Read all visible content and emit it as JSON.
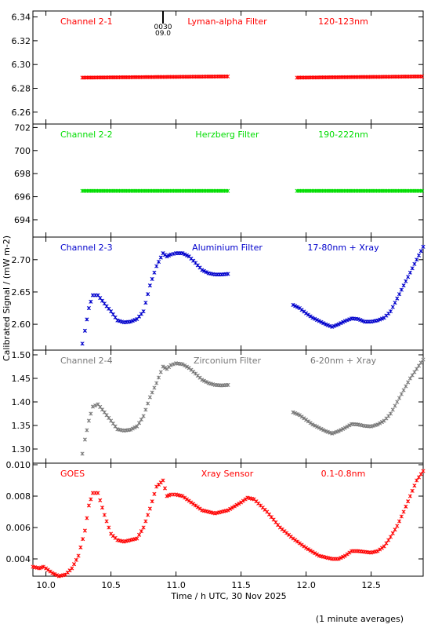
{
  "xaxis": {
    "label": "Time / h UTC, 30 Nov 2025",
    "xlim": [
      9.9,
      12.9
    ],
    "ticks": [
      "10.0",
      "10.5",
      "11.0",
      "11.5",
      "12.0",
      "12.5"
    ]
  },
  "ylabel": "Calibrated Signal / (mW m-2)",
  "footer": "(1 minute averages)",
  "marker": {
    "x": 10.9,
    "labels": [
      "0030",
      "09.0"
    ]
  },
  "chart_data": [
    {
      "type": "scatter",
      "channel": "Channel 2-1",
      "filter": "Lyman-alpha Filter",
      "band": "120-123nm",
      "color": "#ff0000",
      "ylim": [
        6.25,
        6.345
      ],
      "yticks": [
        "6.26",
        "6.28",
        "6.30",
        "6.32",
        "6.34"
      ],
      "segments": [
        {
          "x": [
            10.28,
            11.4
          ],
          "y": [
            6.289,
            6.29
          ]
        },
        {
          "x": [
            11.93,
            12.9
          ],
          "y": [
            6.289,
            6.29
          ]
        }
      ]
    },
    {
      "type": "scatter",
      "channel": "Channel 2-2",
      "filter": "Herzberg Filter",
      "band": "190-222nm",
      "color": "#00dd00",
      "ylim": [
        692.5,
        702.3
      ],
      "yticks": [
        "694",
        "696",
        "698",
        "700",
        "702"
      ],
      "segments": [
        {
          "x": [
            10.28,
            11.4
          ],
          "y": [
            696.5,
            696.5
          ]
        },
        {
          "x": [
            11.93,
            12.9
          ],
          "y": [
            696.5,
            696.5
          ]
        }
      ]
    },
    {
      "type": "scatter",
      "channel": "Channel 2-3",
      "filter": "Aluminium Filter",
      "band": "17-80nm + Xray",
      "color": "#0000cc",
      "ylim": [
        2.56,
        2.735
      ],
      "yticks": [
        "2.60",
        "2.65",
        "2.70"
      ],
      "series": [
        {
          "x": [
            10.28,
            10.3,
            10.33,
            10.36,
            10.4,
            10.45,
            10.5,
            10.55,
            10.6,
            10.65,
            10.7,
            10.75,
            10.8,
            10.85,
            10.9,
            10.93,
            10.96,
            11.0,
            11.05,
            11.1,
            11.15,
            11.2,
            11.25,
            11.3,
            11.35,
            11.4
          ],
          "y": [
            2.57,
            2.59,
            2.625,
            2.645,
            2.645,
            2.632,
            2.62,
            2.606,
            2.603,
            2.604,
            2.608,
            2.62,
            2.66,
            2.69,
            2.71,
            2.705,
            2.708,
            2.71,
            2.71,
            2.705,
            2.695,
            2.684,
            2.679,
            2.677,
            2.677,
            2.678
          ]
        },
        {
          "x": [
            11.9,
            11.95,
            12.0,
            12.05,
            12.1,
            12.15,
            12.2,
            12.25,
            12.3,
            12.35,
            12.4,
            12.45,
            12.5,
            12.55,
            12.6,
            12.65,
            12.7,
            12.75,
            12.8,
            12.85,
            12.9
          ],
          "y": [
            2.63,
            2.625,
            2.617,
            2.61,
            2.605,
            2.6,
            2.596,
            2.6,
            2.605,
            2.609,
            2.608,
            2.604,
            2.604,
            2.606,
            2.61,
            2.62,
            2.64,
            2.66,
            2.68,
            2.7,
            2.72
          ]
        }
      ]
    },
    {
      "type": "scatter",
      "channel": "Channel 2-4",
      "filter": "Zirconium Filter",
      "band": "6-20nm + Xray",
      "color": "#777777",
      "ylim": [
        1.27,
        1.51
      ],
      "yticks": [
        "1.30",
        "1.35",
        "1.40",
        "1.45",
        "1.50"
      ],
      "series": [
        {
          "x": [
            10.28,
            10.3,
            10.33,
            10.36,
            10.4,
            10.45,
            10.5,
            10.55,
            10.6,
            10.65,
            10.7,
            10.75,
            10.8,
            10.85,
            10.9,
            10.93,
            10.96,
            11.0,
            11.05,
            11.1,
            11.15,
            11.2,
            11.25,
            11.3,
            11.35,
            11.4
          ],
          "y": [
            1.29,
            1.32,
            1.36,
            1.39,
            1.395,
            1.378,
            1.36,
            1.342,
            1.339,
            1.341,
            1.348,
            1.37,
            1.41,
            1.44,
            1.475,
            1.47,
            1.478,
            1.482,
            1.48,
            1.472,
            1.46,
            1.447,
            1.44,
            1.436,
            1.435,
            1.436
          ]
        },
        {
          "x": [
            11.9,
            11.95,
            12.0,
            12.05,
            12.1,
            12.15,
            12.2,
            12.25,
            12.3,
            12.35,
            12.4,
            12.45,
            12.5,
            12.55,
            12.6,
            12.65,
            12.7,
            12.75,
            12.8,
            12.85,
            12.9
          ],
          "y": [
            1.378,
            1.372,
            1.362,
            1.352,
            1.345,
            1.338,
            1.333,
            1.338,
            1.345,
            1.353,
            1.352,
            1.349,
            1.348,
            1.352,
            1.36,
            1.375,
            1.4,
            1.425,
            1.45,
            1.47,
            1.49
          ]
        }
      ]
    },
    {
      "type": "scatter",
      "channel": "GOES",
      "filter": "Xray Sensor",
      "band": "0.1-0.8nm",
      "color": "#ff0000",
      "ylim": [
        0.0029,
        0.0101
      ],
      "yticks": [
        "0.004",
        "0.006",
        "0.008",
        "0.010"
      ],
      "series": [
        {
          "x": [
            9.9,
            9.95,
            9.98,
            10.0,
            10.05,
            10.1,
            10.15,
            10.2,
            10.25,
            10.3,
            10.33,
            10.36,
            10.4,
            10.45,
            10.5,
            10.55,
            10.6,
            10.65,
            10.7,
            10.75,
            10.8,
            10.85,
            10.9,
            10.93,
            10.96,
            11.0,
            11.05,
            11.1,
            11.15,
            11.2,
            11.3,
            11.4,
            11.5,
            11.55,
            11.6,
            11.7,
            11.8,
            11.9,
            12.0,
            12.1,
            12.2,
            12.25,
            12.3,
            12.35,
            12.4,
            12.5,
            12.55,
            12.6,
            12.65,
            12.7,
            12.75,
            12.8,
            12.85,
            12.9
          ],
          "y": [
            0.0035,
            0.0034,
            0.0035,
            0.0034,
            0.0031,
            0.0029,
            0.003,
            0.0034,
            0.0042,
            0.0058,
            0.0074,
            0.0082,
            0.0082,
            0.0068,
            0.0056,
            0.0052,
            0.0051,
            0.0052,
            0.0053,
            0.006,
            0.0072,
            0.0086,
            0.009,
            0.008,
            0.0081,
            0.0081,
            0.008,
            0.0077,
            0.0074,
            0.0071,
            0.0069,
            0.0071,
            0.0076,
            0.0079,
            0.0078,
            0.007,
            0.006,
            0.0053,
            0.0047,
            0.0042,
            0.004,
            0.004,
            0.0042,
            0.0045,
            0.0045,
            0.0044,
            0.0045,
            0.0048,
            0.0054,
            0.0061,
            0.007,
            0.008,
            0.009,
            0.0096
          ]
        }
      ]
    }
  ]
}
